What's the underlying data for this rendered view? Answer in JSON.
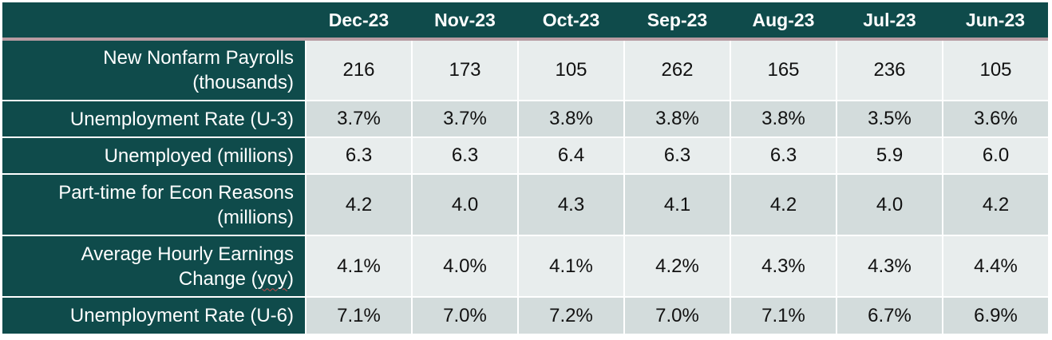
{
  "columns": [
    "Dec-23",
    "Nov-23",
    "Oct-23",
    "Sep-23",
    "Aug-23",
    "Jul-23",
    "Jun-23"
  ],
  "rows": [
    {
      "label_l1": "New Nonfarm Payrolls",
      "label_l2": "(thousands)",
      "values": [
        "216",
        "173",
        "105",
        "262",
        "165",
        "236",
        "105"
      ]
    },
    {
      "label_l1": "Unemployment Rate (U-3)",
      "label_l2": "",
      "values": [
        "3.7%",
        "3.7%",
        "3.8%",
        "3.8%",
        "3.8%",
        "3.5%",
        "3.6%"
      ]
    },
    {
      "label_l1": "Unemployed (millions)",
      "label_l2": "",
      "values": [
        "6.3",
        "6.3",
        "6.4",
        "6.3",
        "6.3",
        "5.9",
        "6.0"
      ]
    },
    {
      "label_l1": "Part-time for Econ Reasons",
      "label_l2": "(millions)",
      "values": [
        "4.2",
        "4.0",
        "4.3",
        "4.1",
        "4.2",
        "4.0",
        "4.2"
      ]
    },
    {
      "label_l1": "Average Hourly Earnings",
      "label_l2_pre": "Change (",
      "label_l2_mid": "yoy",
      "label_l2_post": ")",
      "values": [
        "4.1%",
        "4.0%",
        "4.1%",
        "4.2%",
        "4.3%",
        "4.3%",
        "4.4%"
      ]
    },
    {
      "label_l1": "Unemployment Rate (U-6)",
      "label_l2": "",
      "values": [
        "7.1%",
        "7.0%",
        "7.2%",
        "7.0%",
        "7.1%",
        "6.7%",
        "6.9%"
      ]
    }
  ]
}
